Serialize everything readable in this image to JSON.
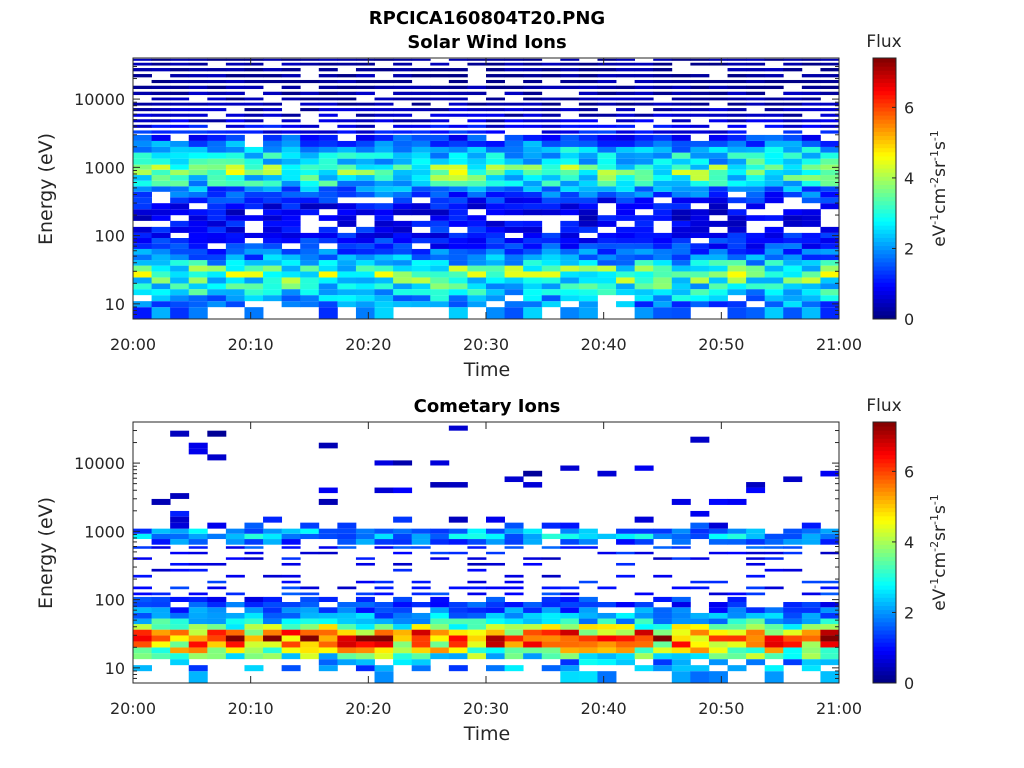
{
  "figure_title": "RPCICA160804T20.PNG",
  "chart_data": [
    {
      "type": "heatmap",
      "title": "Solar Wind Ions",
      "xlabel": "Time",
      "ylabel": "Energy (eV)",
      "x_range": [
        "20:00",
        "21:00"
      ],
      "xticks": [
        "20:00",
        "20:10",
        "20:20",
        "20:30",
        "20:40",
        "20:50",
        "21:00"
      ],
      "y_scale": "log",
      "ylim": [
        6,
        40000
      ],
      "yticks": [
        "10",
        "100",
        "1000",
        "10000"
      ],
      "grid": false,
      "colormap": "jet",
      "colorbar": {
        "title": "Flux",
        "label": "eV-1cm-2sr-1s-1",
        "range": [
          0,
          7.4
        ],
        "ticks": [
          "0",
          "2",
          "4",
          "6"
        ]
      },
      "profile": {
        "description_bands_eV": [
          8,
          10,
          12,
          15,
          18,
          22,
          27,
          33,
          40,
          48,
          58,
          70,
          85,
          100,
          120,
          150,
          180,
          220,
          270,
          330,
          400,
          480,
          580,
          700,
          850,
          1000,
          1200,
          1500,
          1800,
          2200,
          2700,
          3300,
          4000,
          4800,
          5800,
          7000,
          8500,
          10000,
          12000,
          15000,
          18000,
          22000,
          27000,
          33000,
          38000
        ],
        "typical_flux": [
          1.8,
          1.9,
          2.2,
          2.6,
          2.9,
          3.2,
          3.5,
          3.2,
          2.5,
          1.9,
          1.6,
          1.3,
          1.1,
          1.0,
          1.0,
          0.9,
          0.8,
          0.8,
          0.9,
          1.1,
          1.5,
          1.9,
          2.6,
          3.1,
          3.4,
          3.2,
          2.7,
          2.6,
          2.2,
          1.7,
          1.3,
          1.0,
          0.8,
          0.6,
          0.5,
          0.4,
          0.3,
          0.3,
          0.3,
          0.2,
          0.2,
          0.2,
          0.2,
          0.2,
          0.2
        ],
        "fill_probability": [
          0.55,
          0.85,
          0.9,
          0.95,
          1,
          1,
          1,
          1,
          1,
          1,
          1,
          0.95,
          0.9,
          0.85,
          0.75,
          0.7,
          0.7,
          0.75,
          0.8,
          0.85,
          0.95,
          1,
          1,
          1,
          1,
          1,
          1,
          1,
          1,
          0.95,
          0.9,
          0.85,
          0.85,
          0.85,
          0.85,
          0.85,
          0.85,
          0.85,
          0.85,
          0.85,
          0.85,
          0.85,
          0.85,
          0.85,
          0.85
        ]
      }
    },
    {
      "type": "heatmap",
      "title": "Cometary Ions",
      "xlabel": "Time",
      "ylabel": "Energy (eV)",
      "x_range": [
        "20:00",
        "21:00"
      ],
      "xticks": [
        "20:00",
        "20:10",
        "20:20",
        "20:30",
        "20:40",
        "20:50",
        "21:00"
      ],
      "y_scale": "log",
      "ylim": [
        6,
        40000
      ],
      "yticks": [
        "10",
        "100",
        "1000",
        "10000"
      ],
      "grid": false,
      "colormap": "jet",
      "colorbar": {
        "title": "Flux",
        "label": "eV-1cm-2sr-1s-1",
        "range": [
          0,
          7.4
        ],
        "ticks": [
          "0",
          "2",
          "4",
          "6"
        ]
      },
      "profile": {
        "description_bands_eV": [
          8,
          10,
          12,
          15,
          18,
          22,
          27,
          33,
          40,
          48,
          58,
          70,
          85,
          100,
          120,
          150,
          180,
          220,
          270,
          330,
          400,
          480,
          580,
          700,
          850,
          1000,
          1200,
          1500,
          1800,
          2200,
          2700,
          3300,
          4000,
          4800,
          5800,
          7000,
          8500,
          10000,
          12000,
          15000,
          18000,
          22000,
          27000,
          33000,
          38000
        ],
        "typical_flux": [
          2.0,
          2.0,
          2.1,
          3.2,
          4.2,
          5.0,
          6.0,
          5.2,
          3.6,
          2.6,
          2.0,
          1.6,
          1.3,
          1.2,
          1.1,
          1.0,
          1.0,
          0.9,
          0.9,
          0.9,
          0.9,
          1.0,
          1.2,
          1.6,
          2.2,
          2.0,
          1.1,
          0.9,
          0.8,
          0.7,
          0.7,
          0.6,
          0.6,
          0.5,
          0.5,
          0.5,
          0.5,
          0.5,
          0.5,
          0.5,
          0.5,
          0.5,
          0.5,
          0.5,
          0.5
        ],
        "fill_probability": [
          0.3,
          0.45,
          0.5,
          1,
          1,
          1,
          1,
          1,
          1,
          1,
          1,
          0.9,
          0.8,
          0.6,
          0.45,
          0.4,
          0.35,
          0.3,
          0.3,
          0.25,
          0.3,
          0.45,
          0.6,
          0.7,
          1,
          0.95,
          0.35,
          0.15,
          0.12,
          0.1,
          0.1,
          0.08,
          0.08,
          0.07,
          0.07,
          0.06,
          0.05,
          0.05,
          0.05,
          0.04,
          0.03,
          0.03,
          0.02,
          0.02,
          0.0
        ]
      }
    }
  ]
}
